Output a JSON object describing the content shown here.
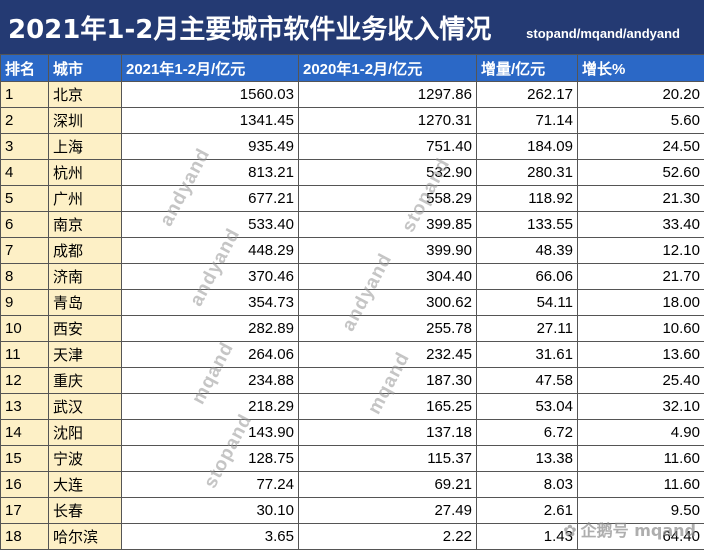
{
  "header": {
    "title": "2021年1-2月主要城市软件业务收入情况",
    "subtitle": "stopand/mqand/andyand"
  },
  "table": {
    "columns": [
      "排名",
      "城市",
      "2021年1-2月/亿元",
      "2020年1-2月/亿元",
      "增量/亿元",
      "增长%"
    ],
    "rows": [
      [
        "1",
        "北京",
        "1560.03",
        "1297.86",
        "262.17",
        "20.20"
      ],
      [
        "2",
        "深圳",
        "1341.45",
        "1270.31",
        "71.14",
        "5.60"
      ],
      [
        "3",
        "上海",
        "935.49",
        "751.40",
        "184.09",
        "24.50"
      ],
      [
        "4",
        "杭州",
        "813.21",
        "532.90",
        "280.31",
        "52.60"
      ],
      [
        "5",
        "广州",
        "677.21",
        "558.29",
        "118.92",
        "21.30"
      ],
      [
        "6",
        "南京",
        "533.40",
        "399.85",
        "133.55",
        "33.40"
      ],
      [
        "7",
        "成都",
        "448.29",
        "399.90",
        "48.39",
        "12.10"
      ],
      [
        "8",
        "济南",
        "370.46",
        "304.40",
        "66.06",
        "21.70"
      ],
      [
        "9",
        "青岛",
        "354.73",
        "300.62",
        "54.11",
        "18.00"
      ],
      [
        "10",
        "西安",
        "282.89",
        "255.78",
        "27.11",
        "10.60"
      ],
      [
        "11",
        "天津",
        "264.06",
        "232.45",
        "31.61",
        "13.60"
      ],
      [
        "12",
        "重庆",
        "234.88",
        "187.30",
        "47.58",
        "25.40"
      ],
      [
        "13",
        "武汉",
        "218.29",
        "165.25",
        "53.04",
        "32.10"
      ],
      [
        "14",
        "沈阳",
        "143.90",
        "137.18",
        "6.72",
        "4.90"
      ],
      [
        "15",
        "宁波",
        "128.75",
        "115.37",
        "13.38",
        "11.60"
      ],
      [
        "16",
        "大连",
        "77.24",
        "69.21",
        "8.03",
        "11.60"
      ],
      [
        "17",
        "长春",
        "30.10",
        "27.49",
        "2.61",
        "9.50"
      ],
      [
        "18",
        "哈尔滨",
        "3.65",
        "2.22",
        "1.43",
        "64.40"
      ]
    ]
  },
  "watermarks": [
    "andyand",
    "stopand",
    "mqand",
    "andyand",
    "stopand",
    "mqand",
    "andyand"
  ],
  "brand": {
    "icon": "paw-icon",
    "text": "企鹅号 mqand"
  }
}
